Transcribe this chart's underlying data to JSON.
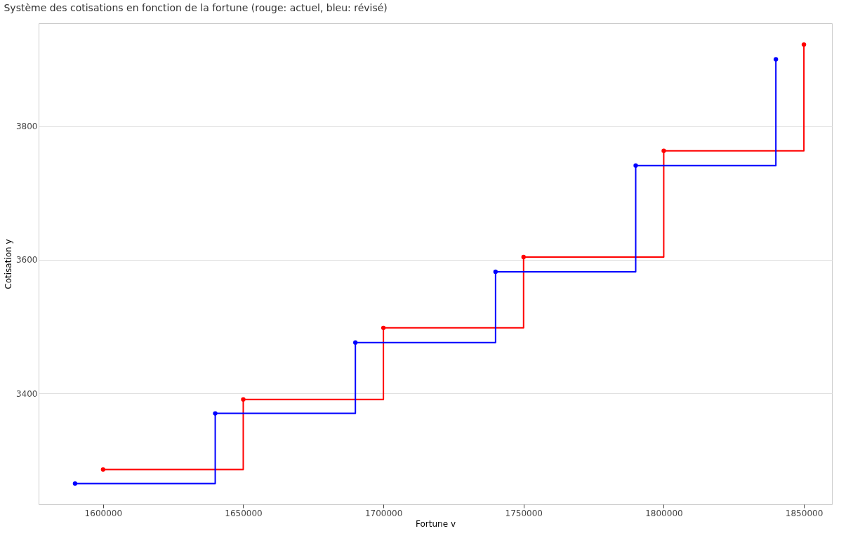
{
  "chart_data": {
    "type": "step",
    "title": "Système des cotisations en fonction de la fortune (rouge: actuel, bleu: révisé)",
    "xlabel": "Fortune v",
    "ylabel": "Cotisation y",
    "series": [
      {
        "color": "#ff0000",
        "x": [
          1600000,
          1650000,
          1700000,
          1750000,
          1800000,
          1850000
        ],
        "values": [
          3286,
          3391,
          3498,
          3604,
          3763,
          3922
        ]
      },
      {
        "color": "#0000ff",
        "x": [
          1590000,
          1640000,
          1690000,
          1740000,
          1790000,
          1840000
        ],
        "values": [
          3265,
          3370,
          3476,
          3582,
          3741,
          3900
        ]
      }
    ],
    "xlim": [
      1577000,
      1860000
    ],
    "xticks": [
      1600000,
      1650000,
      1700000,
      1750000,
      1800000,
      1850000
    ],
    "ylim": [
      3234,
      3954
    ],
    "yticks": [
      3400,
      3600,
      3800
    ],
    "grid": "y",
    "legend": false,
    "marker": "circle",
    "line_style": "solid"
  }
}
